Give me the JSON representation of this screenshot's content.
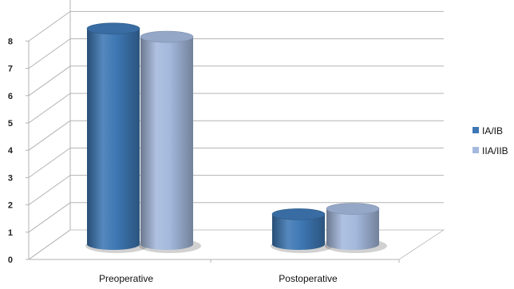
{
  "chart_data": {
    "type": "bar",
    "style": "3d-cylinder",
    "categories": [
      "Preoperative",
      "Postoperative"
    ],
    "series": [
      {
        "name": "IA/IB",
        "values": [
          7.9,
          1.1
        ],
        "color": "#3e78b4"
      },
      {
        "name": "IIA/IIB",
        "values": [
          7.6,
          1.3
        ],
        "color": "#a4b9dd"
      }
    ],
    "ylim": [
      0,
      8
    ],
    "yticks": [
      "0",
      "1",
      "2",
      "3",
      "4",
      "5",
      "6",
      "7",
      "8"
    ],
    "grid": true,
    "legend_position": "right"
  },
  "colors": {
    "grid": "#b3b3b3",
    "floor": "#c4c4c4"
  }
}
